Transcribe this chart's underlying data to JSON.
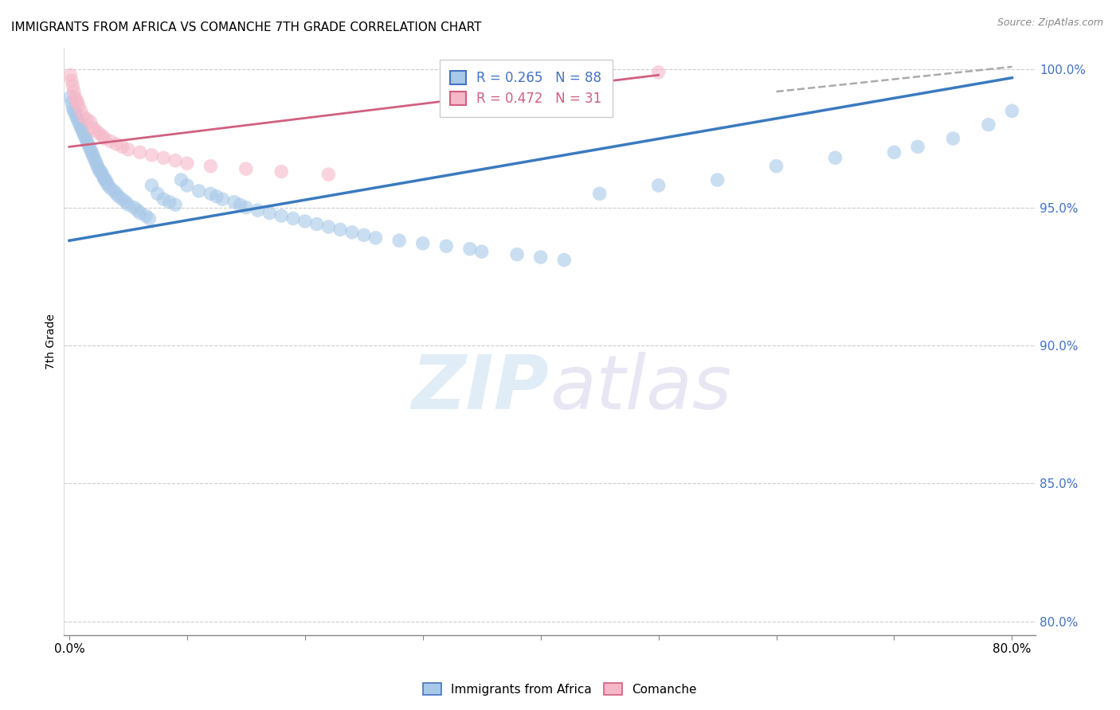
{
  "title": "IMMIGRANTS FROM AFRICA VS COMANCHE 7TH GRADE CORRELATION CHART",
  "source": "Source: ZipAtlas.com",
  "ylabel": "7th Grade",
  "x_tick_positions": [
    0.0,
    0.1,
    0.2,
    0.3,
    0.4,
    0.5,
    0.6,
    0.7,
    0.8
  ],
  "x_ticklabels": [
    "0.0%",
    "",
    "",
    "",
    "",
    "",
    "",
    "",
    "80.0%"
  ],
  "y_ticklabels": [
    "80.0%",
    "85.0%",
    "90.0%",
    "95.0%",
    "100.0%"
  ],
  "xlim": [
    -0.005,
    0.82
  ],
  "ylim": [
    0.795,
    1.008
  ],
  "legend_label_blue": "R = 0.265   N = 88",
  "legend_label_pink": "R = 0.472   N = 31",
  "watermark_zip": "ZIP",
  "watermark_atlas": "atlas",
  "grid_color": "#cccccc",
  "grid_style": "--",
  "background_color": "#ffffff",
  "blue_scatter_color": "#a8c8e8",
  "pink_scatter_color": "#f5b8c8",
  "blue_line_color": "#3a7abf",
  "pink_line_color": "#d06080",
  "dashed_line_color": "#aaaaaa",
  "blue_x": [
    0.001,
    0.002,
    0.003,
    0.004,
    0.005,
    0.006,
    0.007,
    0.008,
    0.009,
    0.01,
    0.011,
    0.012,
    0.013,
    0.014,
    0.015,
    0.016,
    0.017,
    0.018,
    0.019,
    0.02,
    0.021,
    0.022,
    0.023,
    0.024,
    0.025,
    0.026,
    0.027,
    0.028,
    0.029,
    0.03,
    0.031,
    0.032,
    0.033,
    0.035,
    0.038,
    0.04,
    0.042,
    0.045,
    0.048,
    0.05,
    0.055,
    0.058,
    0.06,
    0.065,
    0.068,
    0.07,
    0.075,
    0.08,
    0.085,
    0.09,
    0.095,
    0.1,
    0.11,
    0.12,
    0.125,
    0.13,
    0.14,
    0.145,
    0.15,
    0.16,
    0.17,
    0.18,
    0.19,
    0.2,
    0.21,
    0.22,
    0.23,
    0.24,
    0.25,
    0.26,
    0.28,
    0.3,
    0.32,
    0.34,
    0.35,
    0.38,
    0.4,
    0.42,
    0.45,
    0.5,
    0.55,
    0.6,
    0.65,
    0.7,
    0.72,
    0.75,
    0.78,
    0.8
  ],
  "blue_y": [
    0.99,
    0.988,
    0.986,
    0.985,
    0.984,
    0.983,
    0.982,
    0.981,
    0.98,
    0.979,
    0.978,
    0.977,
    0.976,
    0.975,
    0.974,
    0.973,
    0.972,
    0.971,
    0.97,
    0.969,
    0.968,
    0.967,
    0.966,
    0.965,
    0.964,
    0.963,
    0.963,
    0.962,
    0.961,
    0.96,
    0.96,
    0.959,
    0.958,
    0.957,
    0.956,
    0.955,
    0.954,
    0.953,
    0.952,
    0.951,
    0.95,
    0.949,
    0.948,
    0.947,
    0.946,
    0.958,
    0.955,
    0.953,
    0.952,
    0.951,
    0.96,
    0.958,
    0.956,
    0.955,
    0.954,
    0.953,
    0.952,
    0.951,
    0.95,
    0.949,
    0.948,
    0.947,
    0.946,
    0.945,
    0.944,
    0.943,
    0.942,
    0.941,
    0.94,
    0.939,
    0.938,
    0.937,
    0.936,
    0.935,
    0.934,
    0.933,
    0.932,
    0.931,
    0.955,
    0.958,
    0.96,
    0.965,
    0.968,
    0.97,
    0.972,
    0.975,
    0.98,
    0.985
  ],
  "pink_x": [
    0.001,
    0.002,
    0.003,
    0.004,
    0.005,
    0.006,
    0.007,
    0.008,
    0.01,
    0.012,
    0.015,
    0.018,
    0.02,
    0.022,
    0.025,
    0.028,
    0.03,
    0.035,
    0.04,
    0.045,
    0.05,
    0.06,
    0.07,
    0.08,
    0.09,
    0.1,
    0.12,
    0.15,
    0.18,
    0.22,
    0.5
  ],
  "pink_y": [
    0.998,
    0.996,
    0.994,
    0.992,
    0.99,
    0.989,
    0.988,
    0.987,
    0.985,
    0.983,
    0.982,
    0.981,
    0.979,
    0.978,
    0.977,
    0.976,
    0.975,
    0.974,
    0.973,
    0.972,
    0.971,
    0.97,
    0.969,
    0.968,
    0.967,
    0.966,
    0.965,
    0.964,
    0.963,
    0.962,
    0.999
  ],
  "blue_trend_x0": 0.0,
  "blue_trend_x1": 0.8,
  "blue_trend_y0": 0.938,
  "blue_trend_y1": 0.997,
  "pink_trend_x0": 0.0,
  "pink_trend_x1": 0.5,
  "pink_trend_y0": 0.972,
  "pink_trend_y1": 0.998,
  "dashed_trend_x0": 0.6,
  "dashed_trend_x1": 0.8,
  "dashed_trend_y0": 0.992,
  "dashed_trend_y1": 1.001
}
